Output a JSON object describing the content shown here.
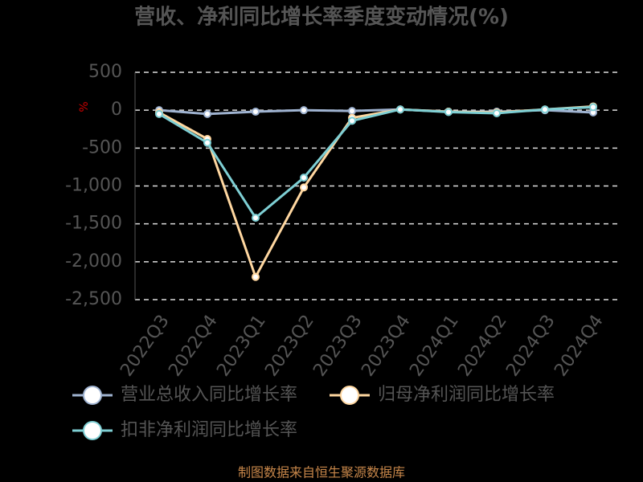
{
  "chart_data": {
    "type": "line",
    "title": "营收、净利同比增长率季度变动情况(%)",
    "y_label": "%",
    "categories": [
      "2022Q3",
      "2022Q4",
      "2023Q1",
      "2023Q2",
      "2023Q3",
      "2023Q4",
      "2024Q1",
      "2024Q2",
      "2024Q3",
      "2024Q4"
    ],
    "series": [
      {
        "name": "营业总收入同比增长率",
        "color": "#9fb3d1",
        "values": [
          0,
          -50,
          -20,
          0,
          -10,
          10,
          -20,
          -20,
          0,
          -30
        ]
      },
      {
        "name": "归母净利润同比增长率",
        "color": "#ffd7a0",
        "values": [
          -30,
          -380,
          -2200,
          -1020,
          -100,
          10,
          -20,
          -30,
          10,
          50
        ]
      },
      {
        "name": "扣非净利润同比增长率",
        "color": "#7ecfd4",
        "values": [
          -50,
          -430,
          -1420,
          -890,
          -140,
          10,
          -25,
          -40,
          10,
          40
        ]
      }
    ],
    "ylim": [
      -2500,
      500
    ],
    "yticks": [
      500,
      0,
      -500,
      {
        "value": -1000,
        "label": "-1,000"
      },
      {
        "value": -1500,
        "label": "-1,500"
      },
      {
        "value": -2000,
        "label": "-2,000"
      },
      {
        "value": -2500,
        "label": "-2,500"
      }
    ],
    "grid": true,
    "footer": "制图数据来自恒生聚源数据库"
  }
}
